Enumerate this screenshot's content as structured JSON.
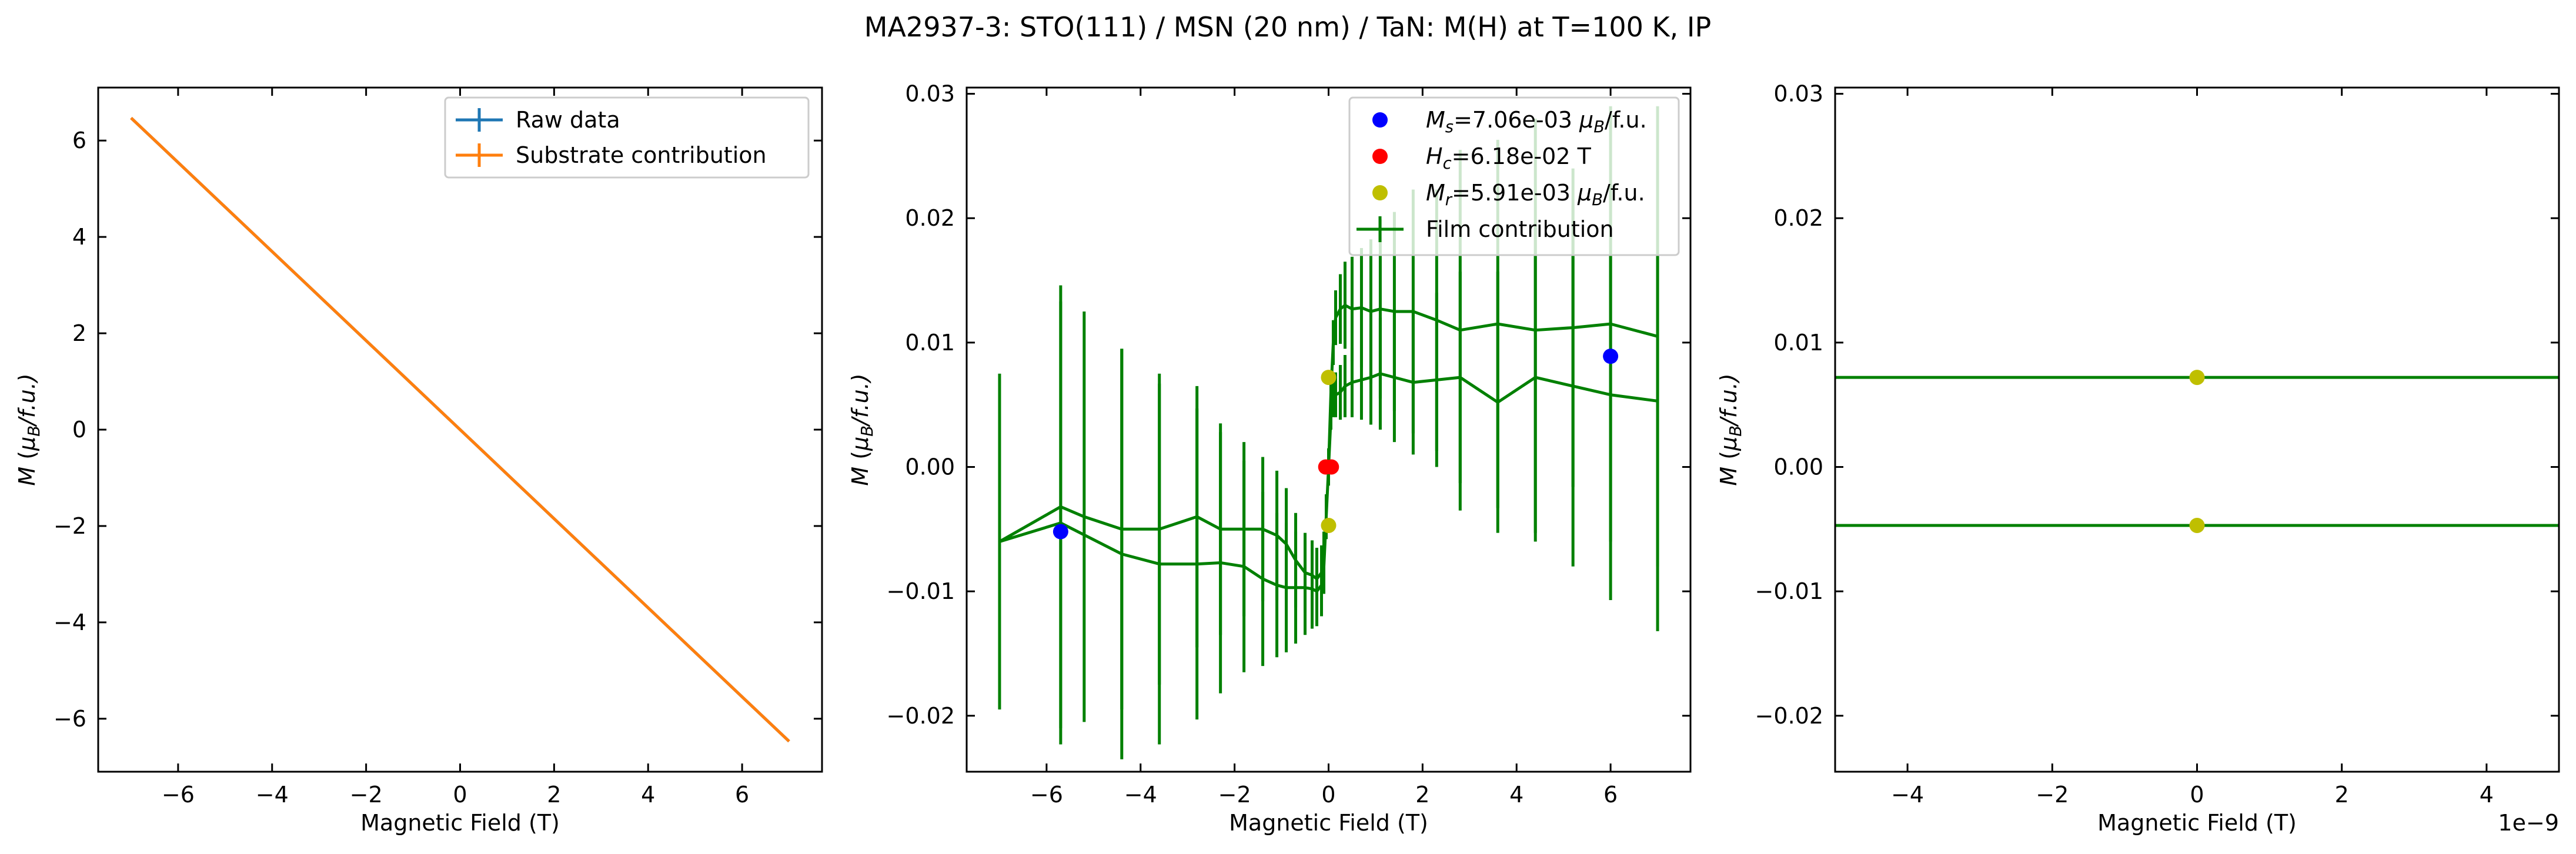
{
  "figure": {
    "title": "MA2937-3: STO(111)  / MSN (20 nm) / TaN: M(H) at T=100 K, IP"
  },
  "chart_data": [
    {
      "type": "line",
      "panel": "left",
      "xlabel": "Magnetic Field (T)",
      "ylabel": "M (μB/f.u.)",
      "xlim": [
        -7.7,
        7.7
      ],
      "ylim": [
        -7.1,
        7.1
      ],
      "xticks": [
        -6,
        -4,
        -2,
        0,
        2,
        4,
        6
      ],
      "yticks": [
        -6,
        -4,
        -2,
        0,
        2,
        4,
        6
      ],
      "legend_position": "top-right",
      "series": [
        {
          "name": "Raw data",
          "color": "#1f77b4",
          "x": [
            -7,
            7
          ],
          "y": [
            6.47,
            -6.47
          ]
        },
        {
          "name": "Substrate contribution",
          "color": "#ff7f0e",
          "x": [
            -7,
            7
          ],
          "y": [
            6.47,
            -6.47
          ]
        }
      ]
    },
    {
      "type": "line",
      "panel": "middle",
      "xlabel": "Magnetic Field (T)",
      "ylabel": "M (μB/f.u.)",
      "xlim": [
        -7.7,
        7.7
      ],
      "ylim": [
        -0.0245,
        0.0305
      ],
      "xticks": [
        -6,
        -4,
        -2,
        0,
        2,
        4,
        6
      ],
      "yticks": [
        -0.02,
        -0.01,
        0.0,
        0.01,
        0.02,
        0.03
      ],
      "legend_position": "top-right",
      "points": [
        {
          "name": "Ms=7.06e-03 μB/f.u.",
          "color": "#0000ff",
          "x": [
            -5.7,
            6.0
          ],
          "y": [
            -0.0052,
            0.0089
          ]
        },
        {
          "name": "Hc=6.18e-02 T",
          "color": "#ff0000",
          "x": [
            -0.06,
            0.06
          ],
          "y": [
            0.0,
            0.0
          ]
        },
        {
          "name": "Mr=5.91e-03 μB/f.u.",
          "color": "#bfbf00",
          "x": [
            0.0,
            0.0
          ],
          "y": [
            0.0072,
            -0.0047
          ]
        }
      ],
      "series": [
        {
          "name": "Film contribution",
          "color": "#008000",
          "x": [
            7.0,
            6.0,
            5.2,
            4.4,
            3.6,
            2.8,
            2.3,
            1.8,
            1.4,
            1.1,
            0.9,
            0.7,
            0.5,
            0.35,
            0.25,
            0.15,
            0.1,
            0.05,
            0.0,
            -0.05,
            -0.1,
            -0.15,
            -0.25,
            -0.35,
            -0.5,
            -0.7,
            -0.9,
            -1.1,
            -1.4,
            -1.8,
            -2.3,
            -2.8,
            -3.6,
            -4.4,
            -5.2,
            -5.7,
            -7.0,
            -5.7,
            -4.4,
            -3.6,
            -2.8,
            -2.3,
            -1.8,
            -1.4,
            -1.1,
            -0.9,
            -0.7,
            -0.5,
            -0.35,
            -0.25,
            -0.15,
            -0.1,
            -0.05,
            0.0,
            0.05,
            0.1,
            0.15,
            0.25,
            0.35,
            0.5,
            0.7,
            0.9,
            1.1,
            1.4,
            1.8,
            2.3,
            2.8,
            3.6,
            4.4,
            5.2,
            6.0,
            7.0
          ],
          "y": [
            0.0105,
            0.0115,
            0.0112,
            0.011,
            0.0115,
            0.011,
            0.0118,
            0.0125,
            0.0125,
            0.0127,
            0.0125,
            0.0128,
            0.0127,
            0.013,
            0.0127,
            0.012,
            0.01,
            0.006,
            0.0,
            -0.004,
            -0.007,
            -0.0085,
            -0.009,
            -0.0087,
            -0.0085,
            -0.0075,
            -0.0062,
            -0.0055,
            -0.005,
            -0.005,
            -0.005,
            -0.004,
            -0.005,
            -0.005,
            -0.004,
            -0.0032,
            -0.006,
            -0.0045,
            -0.007,
            -0.0078,
            -0.0078,
            -0.0077,
            -0.008,
            -0.009,
            -0.0095,
            -0.0097,
            -0.0097,
            -0.0097,
            -0.0098,
            -0.01,
            -0.0095,
            -0.008,
            -0.004,
            0.0,
            0.004,
            0.0055,
            0.0058,
            0.006,
            0.0065,
            0.0068,
            0.007,
            0.0072,
            0.0075,
            0.0072,
            0.0068,
            0.007,
            0.0072,
            0.0052,
            0.0072,
            0.0065,
            0.0058,
            0.0053
          ],
          "yerr": [
            0.0185,
            0.0175,
            0.0128,
            0.017,
            0.0148,
            0.0145,
            0.0105,
            0.0098,
            0.008,
            0.0072,
            0.0058,
            0.0048,
            0.0042,
            0.0035,
            0.0028,
            0.0022,
            0.0018,
            0.0015,
            0.001,
            0.0015,
            0.0018,
            0.0022,
            0.0025,
            0.0028,
            0.0032,
            0.0038,
            0.0045,
            0.0052,
            0.0058,
            0.007,
            0.0085,
            0.0105,
            0.0125,
            0.0145,
            0.0165,
            0.0178,
            0.0135,
            0.0178,
            0.0165,
            0.0145,
            0.0125,
            0.0105,
            0.0085,
            0.007,
            0.0058,
            0.0052,
            0.0045,
            0.0038,
            0.0032,
            0.0028,
            0.0025,
            0.0022,
            0.0018,
            0.0015,
            0.001,
            0.0015,
            0.0018,
            0.0022,
            0.0025,
            0.0028,
            0.0032,
            0.0038,
            0.0045,
            0.0052,
            0.0058,
            0.007,
            0.0085,
            0.0105,
            0.0125,
            0.0145,
            0.0165,
            0.0185
          ]
        }
      ]
    },
    {
      "type": "line",
      "panel": "right",
      "xlabel": "Magnetic Field (T)",
      "ylabel": "M (μB/f.u.)",
      "offset_text": "1e−9",
      "xlim": [
        -5,
        5
      ],
      "ylim": [
        -0.0245,
        0.0305
      ],
      "xticks": [
        -4,
        -2,
        0,
        2,
        4
      ],
      "yticks": [
        -0.02,
        -0.01,
        0.0,
        0.01,
        0.02,
        0.03
      ],
      "points": [
        {
          "color": "#bfbf00",
          "x": [
            0.0,
            0.0
          ],
          "y": [
            0.0072,
            -0.0047
          ]
        }
      ],
      "series": [
        {
          "color": "#008000",
          "x": [
            -5,
            5
          ],
          "y": [
            0.0072,
            0.0072
          ]
        },
        {
          "color": "#008000",
          "x": [
            -5,
            5
          ],
          "y": [
            -0.0047,
            -0.0047
          ]
        }
      ]
    }
  ]
}
